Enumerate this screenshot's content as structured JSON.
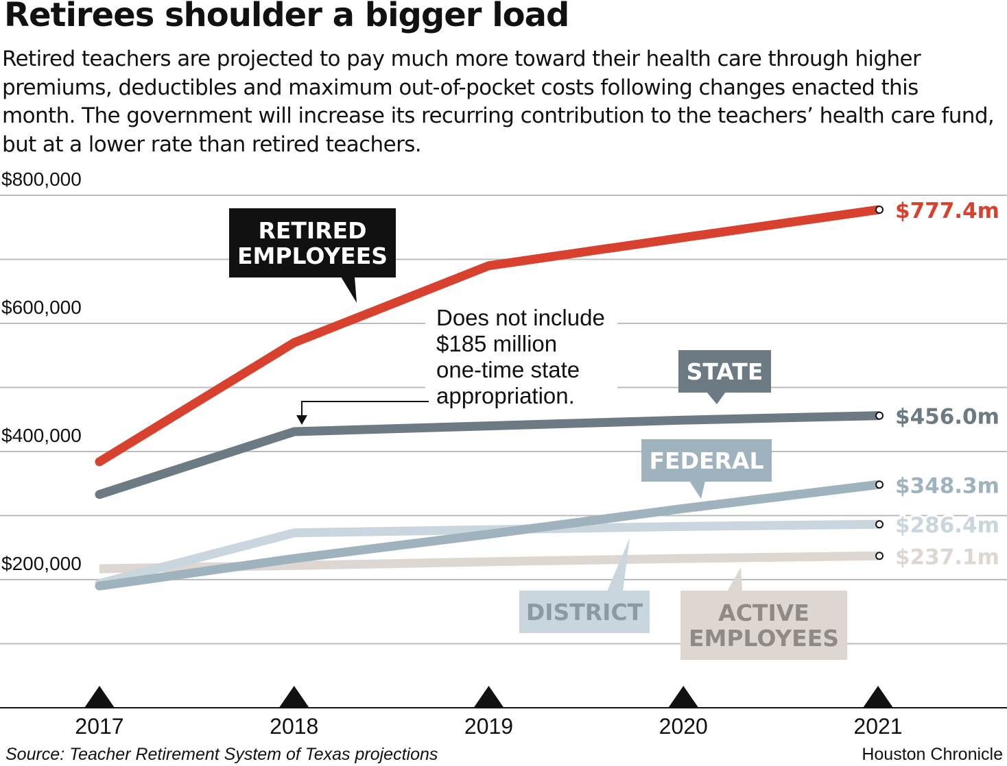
{
  "chart_data": {
    "type": "line",
    "title": "Retirees shoulder a bigger load",
    "subtitle": "Retired teachers are projected to pay much more toward their health care through higher premiums, deductibles and maximum out-of-pocket costs following changes enacted this month. The government will increase its recurring contribution to the teachers’ health care fund, but at a lower rate than retired teachers.",
    "x": [
      "2017",
      "2018",
      "2019",
      "2020",
      "2021"
    ],
    "ylim": [
      0,
      800000
    ],
    "yticks": [
      {
        "value": 800000,
        "label": "$800,000"
      },
      {
        "value": 600000,
        "label": "$600,000"
      },
      {
        "value": 400000,
        "label": "$400,000"
      },
      {
        "value": 200000,
        "label": "$200,000"
      }
    ],
    "grid": true,
    "series": [
      {
        "name": "RETIRED EMPLOYEES",
        "color": "#d9412f",
        "values": [
          384000,
          570000,
          690000,
          734000,
          777400
        ],
        "end_label": "$777.4m"
      },
      {
        "name": "STATE",
        "color": "#6b7a83",
        "values": [
          333000,
          431000,
          440000,
          449000,
          456000
        ],
        "end_label": "$456.0m"
      },
      {
        "name": "FEDERAL",
        "color": "#9fb3bf",
        "values": [
          190000,
          233000,
          271000,
          311000,
          348300
        ],
        "end_label": "$348.3m"
      },
      {
        "name": "DISTRICT",
        "color": "#c9d6de",
        "values": [
          194000,
          273000,
          278000,
          283000,
          286400
        ],
        "end_label": "$286.4m"
      },
      {
        "name": "ACTIVE EMPLOYEES",
        "color": "#ddd6d1",
        "values": [
          217000,
          222000,
          228000,
          233000,
          237100
        ],
        "end_label": "$237.1m"
      }
    ],
    "annotation": [
      "Does not include",
      "$185 million",
      "one-time state",
      "appropriation."
    ],
    "source": "Source: Teacher Retirement System of Texas projections",
    "credit": "Houston Chronicle"
  }
}
